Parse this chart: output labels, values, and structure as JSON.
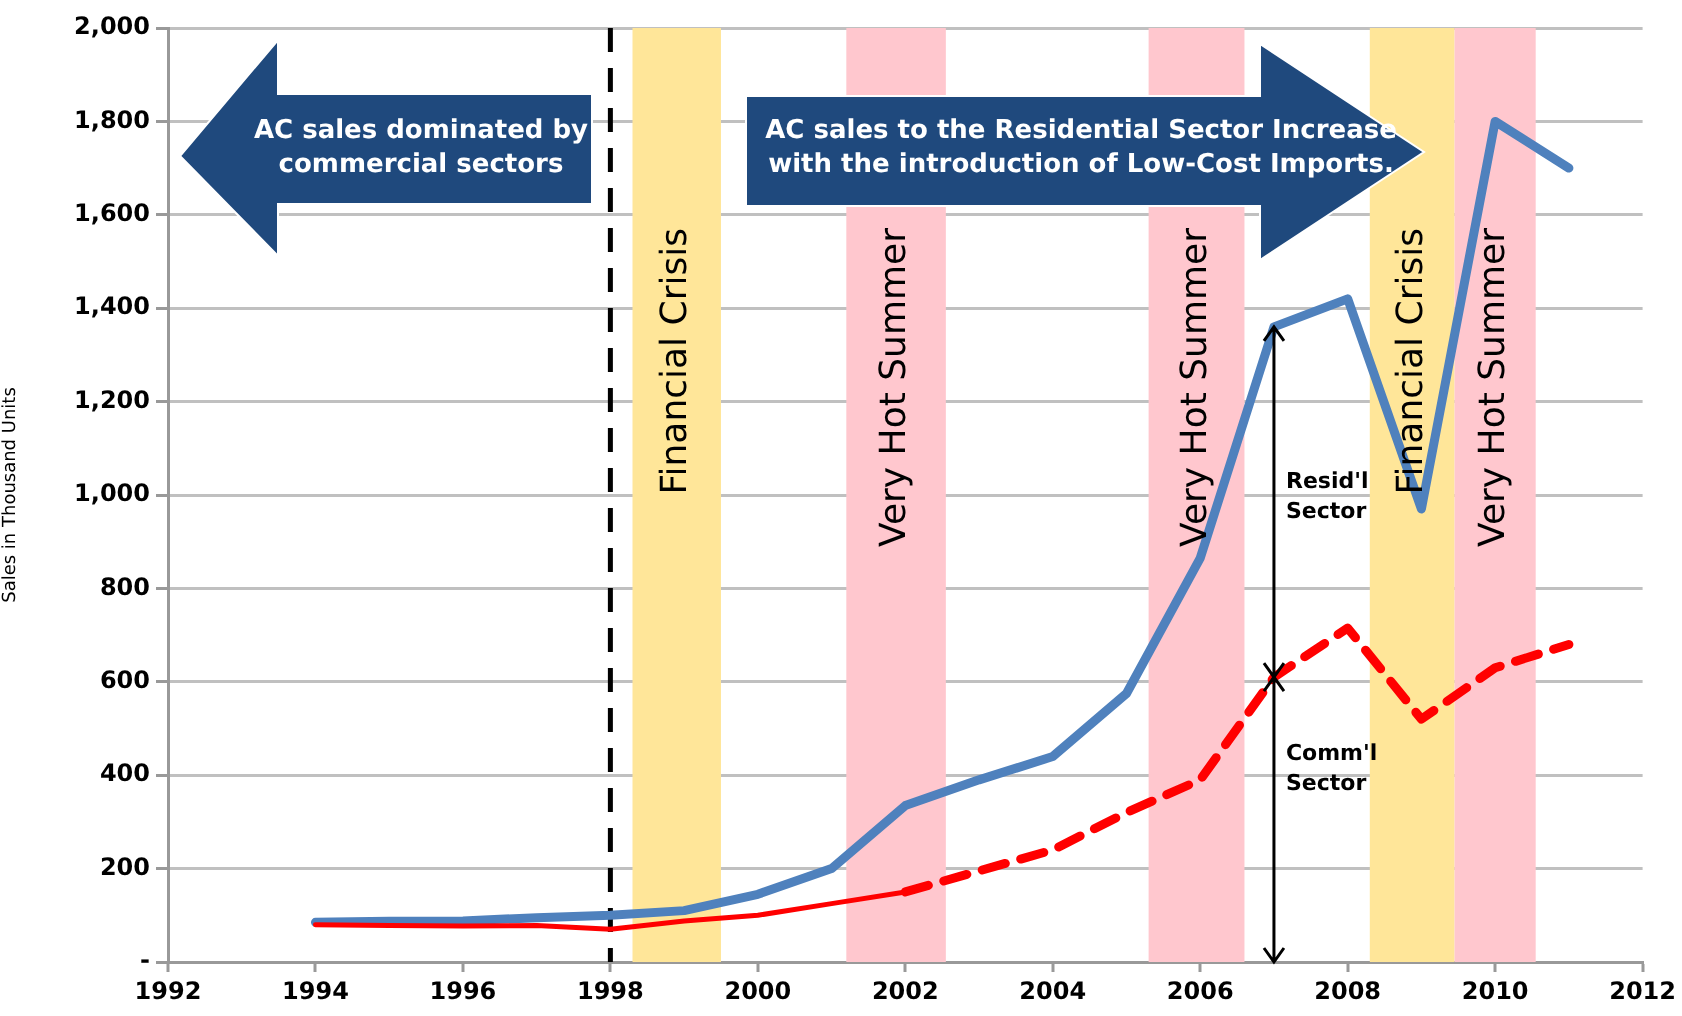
{
  "chart_data": {
    "type": "line",
    "ylabel": "Sales in Thousand Units",
    "series": [
      {
        "color": "#4f81bd",
        "x": [
          1994,
          1995,
          1996,
          1997,
          1998,
          1999,
          2000,
          2001,
          2002,
          2003,
          2004,
          2005,
          2006,
          2007,
          2008,
          2009,
          2010,
          2011
        ],
        "values": [
          85,
          87,
          88,
          95,
          100,
          110,
          145,
          200,
          335,
          390,
          440,
          575,
          865,
          1360,
          1420,
          970,
          1800,
          1700
        ],
        "line_style": "solid"
      },
      {
        "color": "#ff0000",
        "x": [
          1994,
          1995,
          1996,
          1997,
          1998,
          1999,
          2000,
          2001,
          2002
        ],
        "values": [
          80,
          78,
          77,
          78,
          70,
          88,
          100,
          125,
          150
        ],
        "line_style": "solid"
      },
      {
        "color": "#ff0000",
        "x": [
          2002,
          2003,
          2004,
          2005,
          2006,
          2007,
          2008,
          2009,
          2010,
          2011
        ],
        "values": [
          150,
          195,
          240,
          320,
          390,
          610,
          715,
          520,
          630,
          680
        ],
        "line_style": "dashed"
      }
    ],
    "xlim": [
      1992,
      2012
    ],
    "xticks": [
      1992,
      1994,
      1996,
      1998,
      2000,
      2002,
      2004,
      2006,
      2008,
      2010,
      2012
    ],
    "ylim": [
      0,
      2000
    ],
    "yticks": [
      {
        "value": 0,
        "label": "-"
      },
      {
        "value": 200,
        "label": "200"
      },
      {
        "value": 400,
        "label": "400"
      },
      {
        "value": 600,
        "label": "600"
      },
      {
        "value": 800,
        "label": "800"
      },
      {
        "value": 1000,
        "label": "1,000"
      },
      {
        "value": 1200,
        "label": "1,200"
      },
      {
        "value": 1400,
        "label": "1,400"
      },
      {
        "value": 1600,
        "label": "1,600"
      },
      {
        "value": 1800,
        "label": "1,800"
      },
      {
        "value": 2000,
        "label": "2,000"
      }
    ],
    "grid": "y",
    "legend": false,
    "marker": "none",
    "ref_lines": [
      {
        "axis": "x",
        "value": 1998,
        "color": "#000000",
        "line_style": "dashed"
      }
    ],
    "bands": [
      {
        "axis": "x",
        "from": 1998.3,
        "to": 1999.5,
        "label": "Financial Crisis",
        "color": "#ffe699"
      },
      {
        "axis": "x",
        "from": 2001.2,
        "to": 2002.55,
        "label": "Very Hot Summer",
        "color": "#ffc7ce"
      },
      {
        "axis": "x",
        "from": 2005.3,
        "to": 2006.6,
        "label": "Very Hot Summer",
        "color": "#ffc7ce"
      },
      {
        "axis": "x",
        "from": 2008.3,
        "to": 2009.45,
        "label": "Financial Crisis",
        "color": "#ffe699"
      },
      {
        "axis": "x",
        "from": 2009.45,
        "to": 2010.55,
        "label": "Very Hot Summer",
        "color": "#ffc7ce"
      }
    ],
    "annotations": [
      "AC sales dominated by commercial sectors",
      "AC sales to the Residential Sector Increase with the introduction of Low-Cost Imports.",
      "Resid'l Sector",
      "Comm'l Sector"
    ]
  }
}
